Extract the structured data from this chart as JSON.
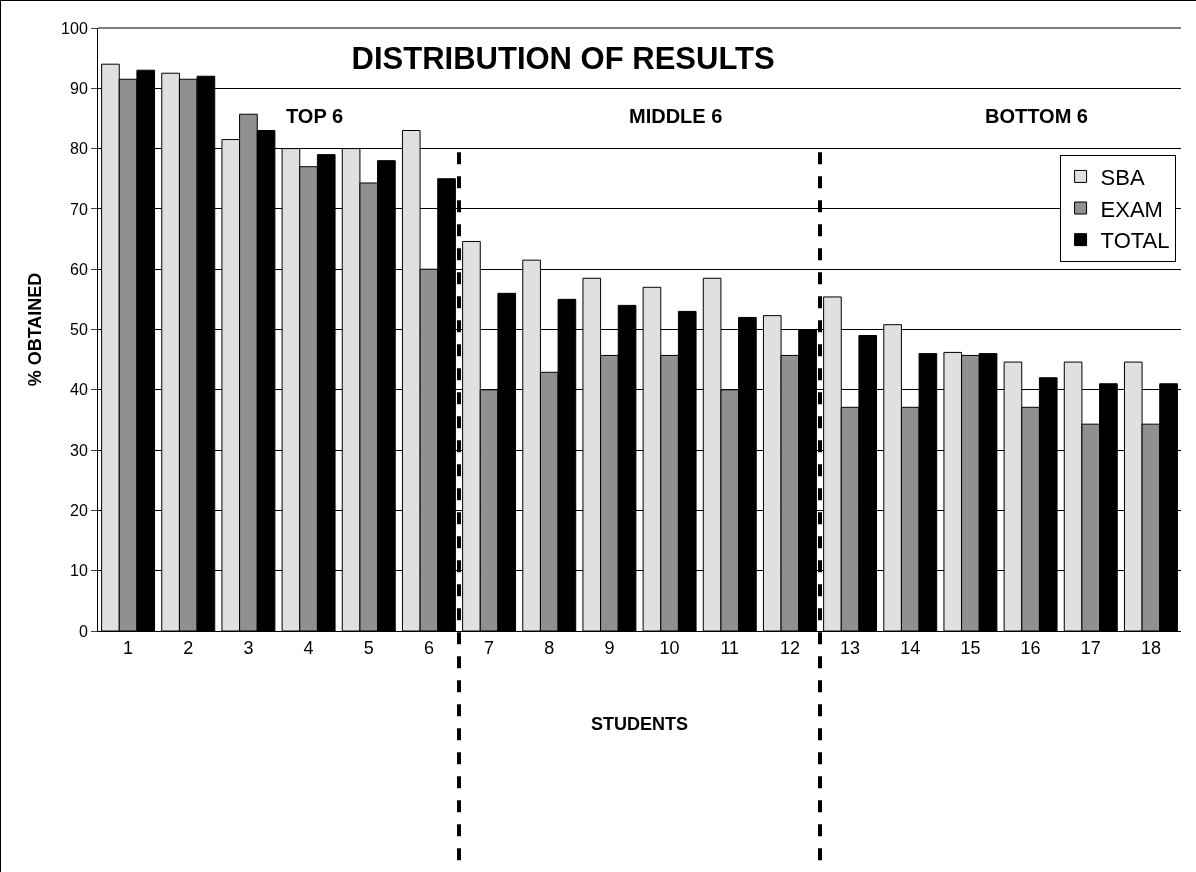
{
  "chart_data": {
    "type": "bar",
    "title": "DISTRIBUTION OF RESULTS",
    "xlabel": "STUDENTS",
    "ylabel": "% OBTAINED",
    "x": [
      1,
      2,
      3,
      4,
      5,
      6,
      7,
      8,
      9,
      10,
      11,
      12,
      13,
      14,
      15,
      16,
      17,
      18
    ],
    "xlim": [
      0.5,
      18.5
    ],
    "xticks": [
      1,
      2,
      3,
      4,
      5,
      6,
      7,
      8,
      9,
      10,
      11,
      12,
      13,
      14,
      15,
      16,
      17,
      18
    ],
    "ylim": [
      0,
      100
    ],
    "yticks": [
      0,
      10,
      20,
      30,
      40,
      50,
      60,
      70,
      80,
      90,
      100
    ],
    "series": [
      {
        "name": "SBA",
        "color": "#e0e0e0",
        "values": [
          94,
          92.5,
          81.5,
          80,
          80,
          83,
          64.6,
          61.5,
          58.5,
          57,
          58.5,
          52.3,
          55.4,
          50.8,
          46.2,
          44.6,
          44.6,
          44.6
        ]
      },
      {
        "name": "EXAM",
        "color": "#909090",
        "values": [
          91.5,
          91.5,
          85.7,
          77,
          74.3,
          60,
          40,
          42.9,
          45.7,
          45.7,
          40,
          45.7,
          37.1,
          37.1,
          45.7,
          37.1,
          34.3,
          34.3
        ]
      },
      {
        "name": "TOTAL",
        "color": "#000000",
        "values": [
          93,
          92,
          83,
          79,
          78,
          75,
          56,
          55,
          54,
          53,
          52,
          50,
          49,
          46,
          46,
          42,
          41,
          41
        ]
      }
    ],
    "ref_lines": [
      {
        "axis": "x",
        "value": 6.5,
        "color": "#000000",
        "line_style": "dashed"
      },
      {
        "axis": "x",
        "value": 12.5,
        "color": "#000000",
        "line_style": "dashed"
      }
    ],
    "annotations": [
      "TOP 6",
      "MIDDLE 6",
      "BOTTOM 6"
    ],
    "grid": "y",
    "legend": "right"
  }
}
